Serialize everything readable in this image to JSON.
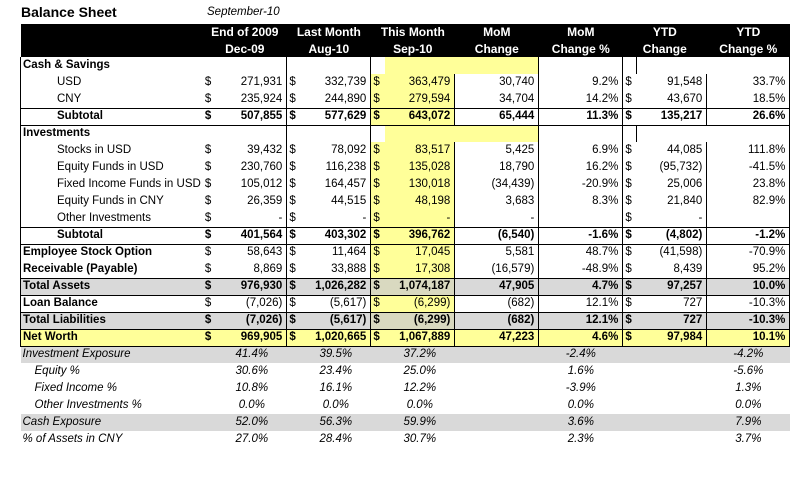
{
  "sheet": {
    "title": "Balance Sheet",
    "date": "September-10"
  },
  "columns": {
    "c1": {
      "l1": "End of 2009",
      "l2": "Dec-09"
    },
    "c2": {
      "l1": "Last Month",
      "l2": "Aug-10"
    },
    "c3": {
      "l1": "This Month",
      "l2": "Sep-10"
    },
    "c4": {
      "l1": "MoM",
      "l2": "Change"
    },
    "c5": {
      "l1": "MoM",
      "l2": "Change %"
    },
    "c6": {
      "l1": "YTD",
      "l2": "Change"
    },
    "c7": {
      "l1": "YTD",
      "l2": "Change %"
    }
  },
  "rows": {
    "cash_head": {
      "label": "Cash & Savings"
    },
    "usd": {
      "label": "USD",
      "cur": "$",
      "v1": "271,931",
      "v2": "332,739",
      "v3": "363,479",
      "v4": "30,740",
      "v5": "9.2%",
      "v6": "91,548",
      "v7": "33.7%"
    },
    "cny": {
      "label": "CNY",
      "cur": "$",
      "v1": "235,924",
      "v2": "244,890",
      "v3": "279,594",
      "v4": "34,704",
      "v5": "14.2%",
      "v6": "43,670",
      "v7": "18.5%"
    },
    "cash_sub": {
      "label": "Subtotal",
      "cur": "$",
      "v1": "507,855",
      "v2": "577,629",
      "v3": "643,072",
      "v4": "65,444",
      "v5": "11.3%",
      "v6": "135,217",
      "v7": "26.6%"
    },
    "inv_head": {
      "label": "Investments"
    },
    "stocks": {
      "label": "Stocks in USD",
      "cur": "$",
      "v1": "39,432",
      "v2": "78,092",
      "v3": "83,517",
      "v4": "5,425",
      "v5": "6.9%",
      "v6": "44,085",
      "v7": "111.8%"
    },
    "eq_usd": {
      "label": "Equity Funds in USD",
      "cur": "$",
      "v1": "230,760",
      "v2": "116,238",
      "v3": "135,028",
      "v4": "18,790",
      "v5": "16.2%",
      "v6": "(95,732)",
      "v7": "-41.5%"
    },
    "fi_usd": {
      "label": "Fixed Income Funds in USD",
      "cur": "$",
      "v1": "105,012",
      "v2": "164,457",
      "v3": "130,018",
      "v4": "(34,439)",
      "v5": "-20.9%",
      "v6": "25,006",
      "v7": "23.8%"
    },
    "eq_cny": {
      "label": "Equity Funds in CNY",
      "cur": "$",
      "v1": "26,359",
      "v2": "44,515",
      "v3": "48,198",
      "v4": "3,683",
      "v5": "8.3%",
      "v6": "21,840",
      "v7": "82.9%"
    },
    "other": {
      "label": "Other Investments",
      "cur": "$",
      "v1": "-",
      "v2": "-",
      "v3": "-",
      "v4": "-",
      "v5": "",
      "v6": "-",
      "v7": ""
    },
    "inv_sub": {
      "label": "Subtotal",
      "cur": "$",
      "v1": "401,564",
      "v2": "403,302",
      "v3": "396,762",
      "v4": "(6,540)",
      "v5": "-1.6%",
      "v6": "(4,802)",
      "v7": "-1.2%"
    },
    "eso": {
      "label": "Employee Stock Option",
      "cur": "$",
      "v1": "58,643",
      "v2": "11,464",
      "v3": "17,045",
      "v4": "5,581",
      "v5": "48.7%",
      "v6": "(41,598)",
      "v7": "-70.9%"
    },
    "recv": {
      "label": "Receivable (Payable)",
      "cur": "$",
      "v1": "8,869",
      "v2": "33,888",
      "v3": "17,308",
      "v4": "(16,579)",
      "v5": "-48.9%",
      "v6": "8,439",
      "v7": "95.2%"
    },
    "total_assets": {
      "label": "Total Assets",
      "cur": "$",
      "v1": "976,930",
      "v2": "1,026,282",
      "v3": "1,074,187",
      "v4": "47,905",
      "v5": "4.7%",
      "v6": "97,257",
      "v7": "10.0%"
    },
    "loan": {
      "label": "Loan Balance",
      "cur": "$",
      "v1": "(7,026)",
      "v2": "(5,617)",
      "v3": "(6,299)",
      "v4": "(682)",
      "v5": "12.1%",
      "v6": "727",
      "v7": "-10.3%"
    },
    "total_liab": {
      "label": "Total Liabilities",
      "cur": "$",
      "v1": "(7,026)",
      "v2": "(5,617)",
      "v3": "(6,299)",
      "v4": "(682)",
      "v5": "12.1%",
      "v6": "727",
      "v7": "-10.3%"
    },
    "net_worth": {
      "label": "Net Worth",
      "cur": "$",
      "v1": "969,905",
      "v2": "1,020,665",
      "v3": "1,067,889",
      "v4": "47,223",
      "v5": "4.6%",
      "v6": "97,984",
      "v7": "10.1%"
    }
  },
  "ratios": {
    "inv_exp": {
      "label": "Investment Exposure",
      "v1": "41.4%",
      "v2": "39.5%",
      "v3": "37.2%",
      "v5": "-2.4%",
      "v7": "-4.2%"
    },
    "equity": {
      "label": "Equity %",
      "v1": "30.6%",
      "v2": "23.4%",
      "v3": "25.0%",
      "v5": "1.6%",
      "v7": "-5.6%"
    },
    "fixed": {
      "label": "Fixed Income %",
      "v1": "10.8%",
      "v2": "16.1%",
      "v3": "12.2%",
      "v5": "-3.9%",
      "v7": "1.3%"
    },
    "other_inv": {
      "label": "Other Investments %",
      "v1": "0.0%",
      "v2": "0.0%",
      "v3": "0.0%",
      "v5": "0.0%",
      "v7": "0.0%"
    },
    "cash_exp": {
      "label": "Cash Exposure",
      "v1": "52.0%",
      "v2": "56.3%",
      "v3": "59.9%",
      "v5": "3.6%",
      "v7": "7.9%"
    },
    "assets_cny": {
      "label": "% of Assets in CNY",
      "v1": "27.0%",
      "v2": "28.4%",
      "v3": "30.7%",
      "v5": "2.3%",
      "v7": "3.7%"
    }
  }
}
